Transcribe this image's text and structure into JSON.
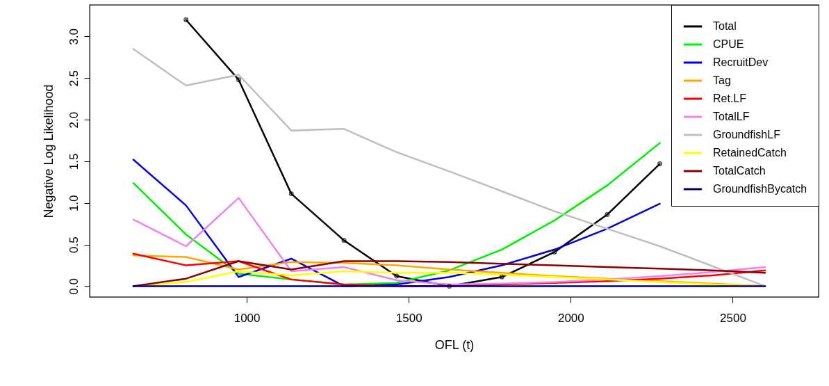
{
  "chart_data": {
    "type": "line",
    "xlabel": "OFL (t)",
    "ylabel": "Negative Log Likelihood",
    "x": [
      650,
      812.5,
      975,
      1137.5,
      1300,
      1462.5,
      1625,
      1787.5,
      1950,
      2112.5,
      2275,
      2437.5,
      2600
    ],
    "xlim": [
      515,
      2765
    ],
    "xticks": [
      1000,
      1500,
      2000,
      2500
    ],
    "ylim": [
      -0.13,
      3.38
    ],
    "yticks": [
      {
        "value": 0,
        "label": "0.0"
      },
      {
        "value": 0.5,
        "label": "0.5"
      },
      {
        "value": 1,
        "label": "1.0"
      },
      {
        "value": 1.5,
        "label": "1.5"
      },
      {
        "value": 2,
        "label": "2.0"
      },
      {
        "value": 2.5,
        "label": "2.5"
      },
      {
        "value": 3,
        "label": "3.0"
      }
    ],
    "grid": false,
    "legend": "top right",
    "line_style": "solid",
    "series": [
      {
        "name": "Total",
        "color": "#000000",
        "marker": "circle",
        "values": [
          null,
          3.2,
          2.48,
          1.11,
          0.55,
          0.12,
          0,
          0.11,
          0.41,
          0.86,
          1.47,
          null,
          null
        ]
      },
      {
        "name": "CPUE",
        "color": "#00ee00",
        "values": [
          1.24,
          0.62,
          0.15,
          0.08,
          0.02,
          0.04,
          0.19,
          0.44,
          0.79,
          1.21,
          1.72,
          null,
          null
        ]
      },
      {
        "name": "RecruitDev",
        "color": "#0000dd",
        "values": [
          1.52,
          0.97,
          0.11,
          0.33,
          0,
          0.02,
          0.11,
          0.25,
          0.44,
          0.69,
          0.99,
          null,
          null
        ]
      },
      {
        "name": "Tag",
        "color": "#ffa500",
        "values": [
          0.37,
          0.35,
          0.2,
          0.29,
          0.28,
          0.25,
          0.2,
          0.16,
          0.12,
          0.09,
          0.06,
          0.03,
          0
        ]
      },
      {
        "name": "Ret.LF",
        "color": "#ff0000",
        "values": [
          0.39,
          0.25,
          0.3,
          0.08,
          0.02,
          0,
          0,
          0.02,
          0.04,
          0.06,
          0.09,
          0.13,
          0.19
        ]
      },
      {
        "name": "TotalLF",
        "color": "#ee82ee",
        "values": [
          0.8,
          0.48,
          1.06,
          0.18,
          0.23,
          0.07,
          0.02,
          0.03,
          0.05,
          0.08,
          0.12,
          0.17,
          0.23
        ]
      },
      {
        "name": "GroundfishLF",
        "color": "#bebebe",
        "values": [
          2.85,
          2.41,
          2.54,
          1.87,
          1.89,
          1.61,
          1.38,
          1.14,
          0.9,
          0.69,
          0.48,
          0.24,
          0
        ]
      },
      {
        "name": "RetainedCatch",
        "color": "#ffff00",
        "values": [
          0,
          0.05,
          0.18,
          0.13,
          0.18,
          0.16,
          0.16,
          0.14,
          0.11,
          0.08,
          0.05,
          0.02,
          0
        ]
      },
      {
        "name": "TotalCatch",
        "color": "#8b0000",
        "values": [
          0,
          0.09,
          0.3,
          0.2,
          0.3,
          0.3,
          0.29,
          0.27,
          0.25,
          0.23,
          0.21,
          0.19,
          0.16
        ]
      },
      {
        "name": "GroundfishBycatch",
        "color": "#000080",
        "values": [
          0,
          0,
          0,
          0,
          0,
          0,
          0,
          0,
          0,
          0,
          0,
          0,
          0
        ]
      }
    ]
  }
}
